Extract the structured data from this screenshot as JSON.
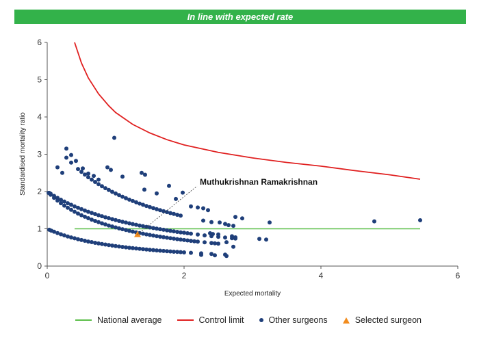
{
  "banner": {
    "text": "In line with expected rate",
    "color": "#33b24a"
  },
  "chart_data": {
    "type": "scatter",
    "title": "",
    "xlabel": "Expected mortality",
    "ylabel": "Standardised mortality ratio",
    "xlim": [
      0,
      6
    ],
    "ylim": [
      0,
      6
    ],
    "xticks": [
      0,
      2,
      4,
      6
    ],
    "yticks": [
      0,
      1,
      2,
      3,
      4,
      5,
      6
    ],
    "grid": false,
    "legend_position": "bottom",
    "national_average": {
      "name": "National average",
      "color": "#5cbf4a",
      "y": 1,
      "x_start": 0.4,
      "x_end": 5.45
    },
    "control_limit": {
      "name": "Control limit",
      "color": "#e02020",
      "points": [
        [
          0.4,
          6.0
        ],
        [
          0.5,
          5.45
        ],
        [
          0.6,
          5.05
        ],
        [
          0.75,
          4.62
        ],
        [
          0.9,
          4.3
        ],
        [
          1.0,
          4.12
        ],
        [
          1.25,
          3.8
        ],
        [
          1.5,
          3.57
        ],
        [
          1.75,
          3.39
        ],
        [
          2.0,
          3.25
        ],
        [
          2.5,
          3.05
        ],
        [
          3.0,
          2.9
        ],
        [
          3.5,
          2.78
        ],
        [
          4.0,
          2.68
        ],
        [
          4.5,
          2.56
        ],
        [
          5.0,
          2.45
        ],
        [
          5.45,
          2.33
        ]
      ]
    },
    "other_surgeons": {
      "name": "Other surgeons",
      "color": "#1f3f7a",
      "bands": [
        {
          "count": 0,
          "x": [
            0.03,
            0.06,
            0.1,
            0.15,
            0.2,
            0.25,
            0.3,
            0.35,
            0.4,
            0.45,
            0.5,
            0.55,
            0.6,
            0.65,
            0.7,
            0.75,
            0.8,
            0.85,
            0.9,
            0.95,
            1.0,
            1.05,
            1.1,
            1.15,
            1.2,
            1.25,
            1.3,
            1.35,
            1.4,
            1.45,
            1.5,
            1.55,
            1.6,
            1.65,
            1.7,
            1.75,
            1.8,
            1.85,
            1.9,
            1.95,
            2.0,
            2.1,
            2.25,
            2.4,
            2.6
          ]
        },
        {
          "count": 1,
          "x": [
            0.02,
            0.05,
            0.1,
            0.15,
            0.2,
            0.25,
            0.3,
            0.35,
            0.4,
            0.45,
            0.5,
            0.55,
            0.6,
            0.65,
            0.7,
            0.75,
            0.8,
            0.85,
            0.9,
            0.95,
            1.0,
            1.05,
            1.1,
            1.15,
            1.2,
            1.25,
            1.3,
            1.35,
            1.4,
            1.45,
            1.5,
            1.55,
            1.6,
            1.65,
            1.7,
            1.75,
            1.8,
            1.85,
            1.9,
            1.95,
            2.0,
            2.05,
            2.1,
            2.15,
            2.2,
            2.3,
            2.4,
            2.45,
            2.5
          ]
        },
        {
          "count": 2,
          "x": [
            0.03,
            0.05,
            0.1,
            0.15,
            0.2,
            0.25,
            0.3,
            0.35,
            0.4,
            0.45,
            0.5,
            0.55,
            0.6,
            0.65,
            0.7,
            0.75,
            0.8,
            0.85,
            0.9,
            0.95,
            1.0,
            1.05,
            1.1,
            1.15,
            1.2,
            1.25,
            1.3,
            1.35,
            1.4,
            1.45,
            1.5,
            1.55,
            1.6,
            1.65,
            1.7,
            1.75,
            1.8,
            1.85,
            1.9,
            1.95,
            2.0,
            2.05,
            2.1,
            2.2,
            2.3,
            2.4,
            2.5,
            2.6,
            2.7,
            2.75
          ]
        },
        {
          "count": 3,
          "x": [
            0.28,
            0.35,
            0.45,
            0.5,
            0.55,
            0.6,
            0.65,
            0.7,
            0.75,
            0.8,
            0.85,
            0.9,
            0.95,
            1.0,
            1.05,
            1.1,
            1.15,
            1.2,
            1.25,
            1.3,
            1.35,
            1.4,
            1.45,
            1.5,
            1.55,
            1.6,
            1.65,
            1.7,
            1.75,
            1.8,
            1.85,
            1.9,
            1.95
          ]
        },
        {
          "count": 4,
          "x": [
            0.98
          ]
        }
      ],
      "extra_points": [
        [
          0.28,
          3.15
        ],
        [
          0.35,
          2.98
        ],
        [
          0.15,
          2.65
        ],
        [
          0.22,
          2.5
        ],
        [
          0.42,
          2.82
        ],
        [
          0.52,
          2.62
        ],
        [
          0.6,
          2.48
        ],
        [
          0.68,
          2.42
        ],
        [
          0.75,
          2.32
        ],
        [
          0.88,
          2.65
        ],
        [
          0.93,
          2.58
        ],
        [
          1.1,
          2.4
        ],
        [
          1.38,
          2.5
        ],
        [
          1.43,
          2.45
        ],
        [
          1.42,
          2.05
        ],
        [
          1.6,
          1.95
        ],
        [
          1.78,
          2.15
        ],
        [
          1.88,
          1.8
        ],
        [
          1.98,
          1.97
        ],
        [
          2.1,
          1.6
        ],
        [
          2.2,
          1.57
        ],
        [
          2.28,
          1.55
        ],
        [
          2.35,
          1.5
        ],
        [
          2.28,
          1.22
        ],
        [
          2.4,
          1.18
        ],
        [
          2.52,
          1.17
        ],
        [
          2.6,
          1.13
        ],
        [
          2.65,
          1.1
        ],
        [
          2.72,
          1.08
        ],
        [
          2.75,
          1.32
        ],
        [
          2.85,
          1.28
        ],
        [
          3.25,
          1.17
        ],
        [
          3.1,
          0.73
        ],
        [
          3.2,
          0.71
        ],
        [
          2.7,
          0.8
        ],
        [
          2.75,
          0.77
        ],
        [
          2.62,
          0.64
        ],
        [
          2.72,
          0.52
        ],
        [
          2.38,
          0.88
        ],
        [
          2.42,
          0.86
        ],
        [
          2.5,
          0.85
        ],
        [
          2.25,
          0.3
        ],
        [
          2.45,
          0.29
        ],
        [
          2.62,
          0.27
        ],
        [
          4.78,
          1.2
        ],
        [
          5.45,
          1.23
        ]
      ]
    },
    "selected_surgeon": {
      "name": "Selected surgeon",
      "color": "#f28c1e",
      "x": 1.32,
      "y": 0.85,
      "label": "Muthukrishnan Ramakrishnan"
    }
  }
}
